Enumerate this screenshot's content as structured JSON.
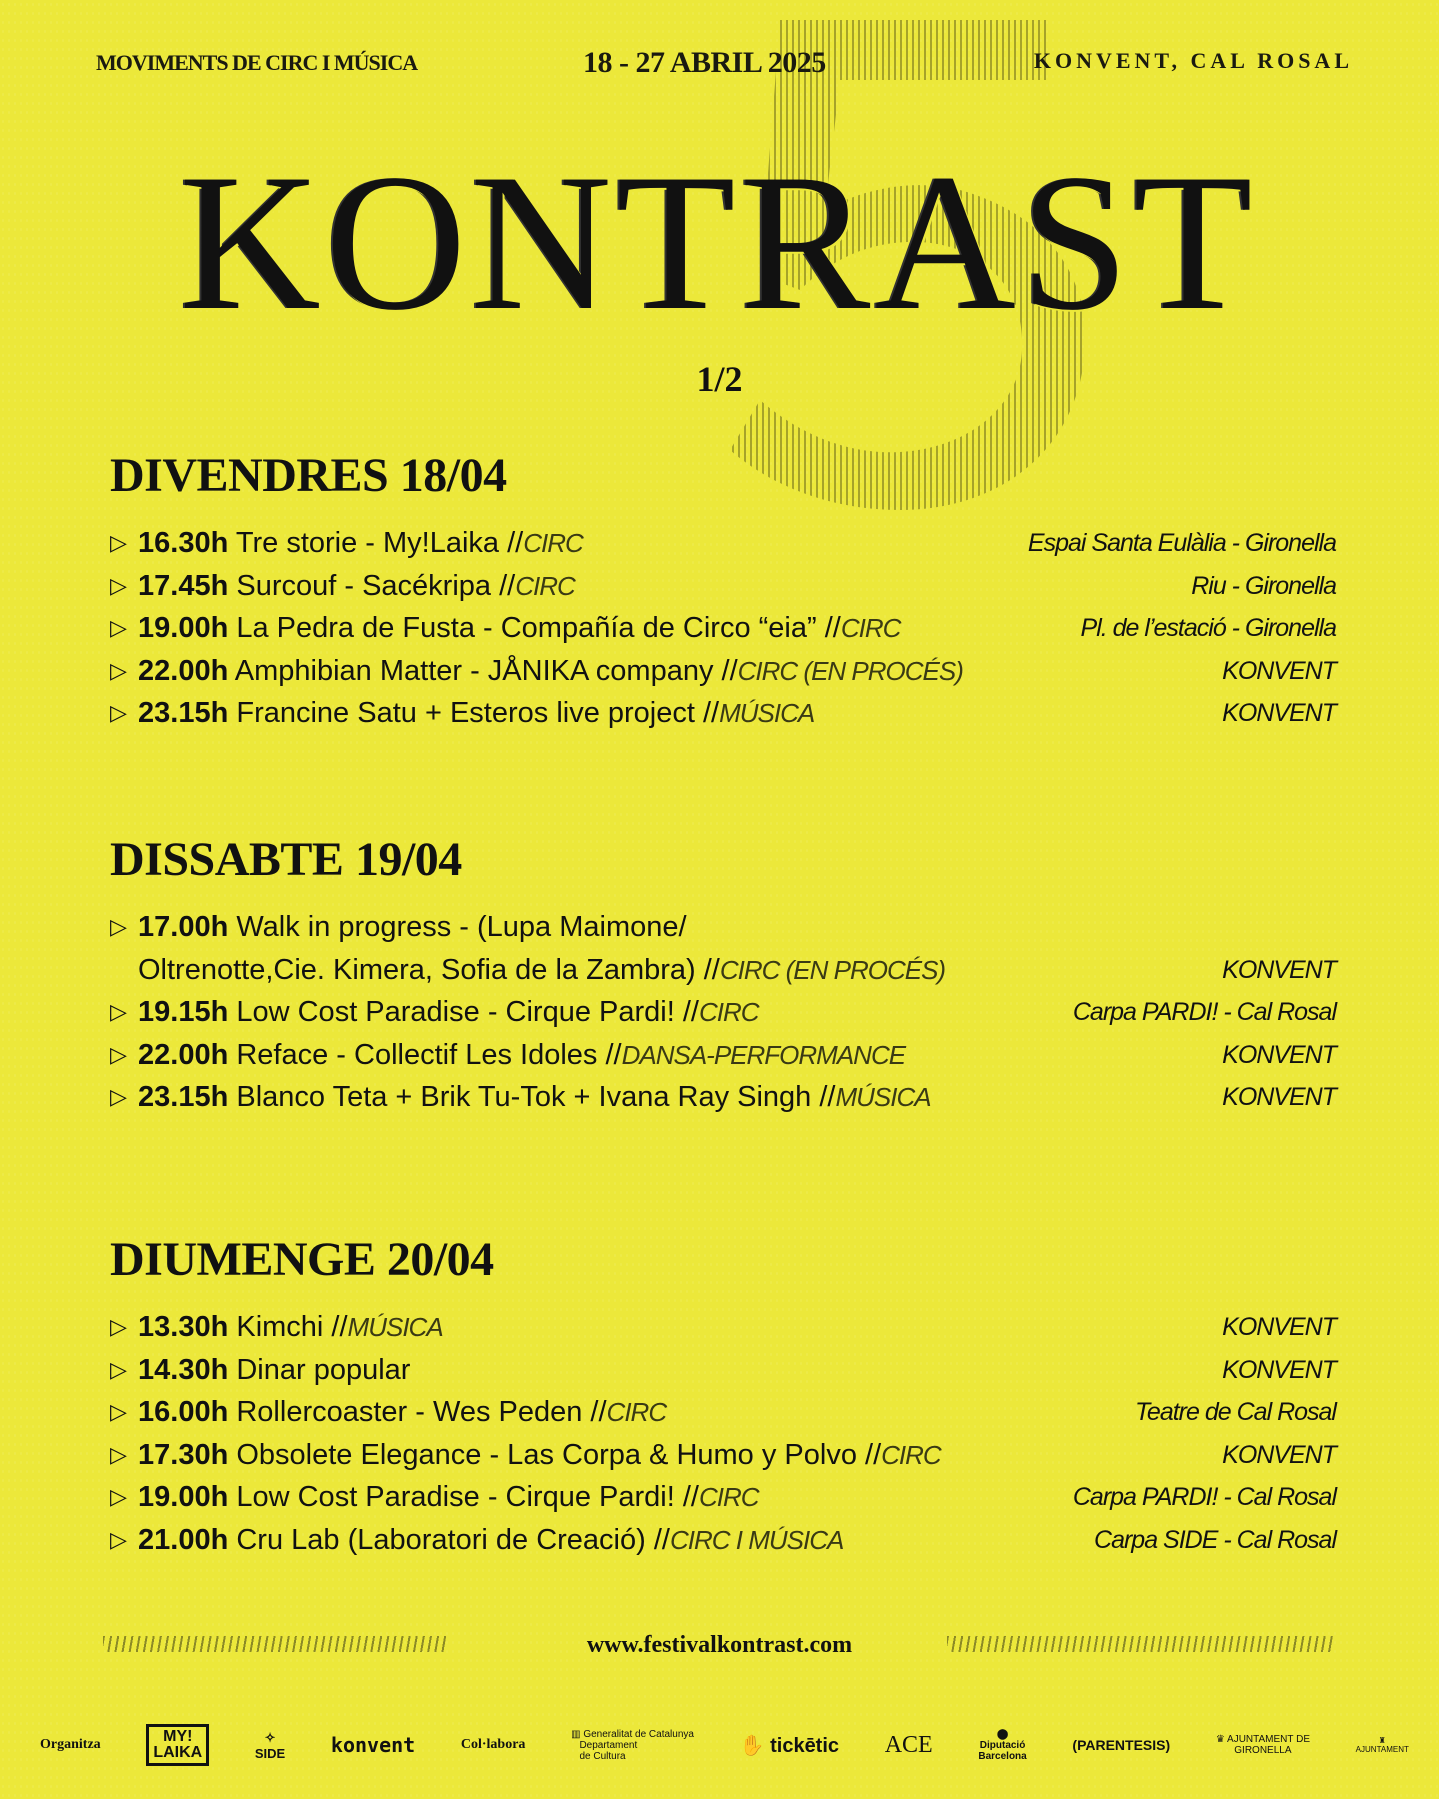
{
  "header": {
    "tagline": "MOVIMENTS DE CIRC I MÚSICA",
    "dates": "18 - 27 ABRIL 2025",
    "location": "KONVENT, CAL ROSAL"
  },
  "title": "KONTRAST",
  "edition_numeral": "5",
  "part": "1/2",
  "colors": {
    "background": "#ece83a",
    "text": "#111111",
    "tag": "#3a3a14"
  },
  "bullet_icon": "triangle-right-outline",
  "days": [
    {
      "heading": "DIVENDRES 18/04",
      "events": [
        {
          "time": "16.30h",
          "title": "Tre storie - My!Laika",
          "tag": "CIRC",
          "venue": "Espai Santa Eulàlia - Gironella"
        },
        {
          "time": "17.45h",
          "title": "Surcouf - Sacékripa",
          "tag": "CIRC",
          "venue": "Riu - Gironella"
        },
        {
          "time": "19.00h",
          "title": "La Pedra de Fusta - Compañía de Circo “eia”",
          "tag": "CIRC",
          "venue": "Pl. de l’estació - Gironella"
        },
        {
          "time": "22.00h",
          "title": "Amphibian Matter - JÅNIKA company",
          "tag": "CIRC (EN PROCÉS)",
          "venue": "KONVENT"
        },
        {
          "time": "23.15h",
          "title": "Francine Satu + Esteros live project",
          "tag": "MÚSICA",
          "venue": "KONVENT"
        }
      ]
    },
    {
      "heading": "DISSABTE 19/04",
      "events": [
        {
          "time": "17.00h",
          "title": "Walk in progress - (Lupa Maimone/\nOltrenotte,Cie. Kimera, Sofia de la Zambra)",
          "tag": "CIRC (EN PROCÉS)",
          "venue": "KONVENT"
        },
        {
          "time": "19.15h",
          "title": "Low Cost Paradise - Cirque Pardi!",
          "tag": "CIRC",
          "venue": "Carpa PARDI! - Cal Rosal"
        },
        {
          "time": "22.00h",
          "title": "Reface - Collectif Les Idoles",
          "tag": "DANSA-PERFORMANCE",
          "venue": "KONVENT"
        },
        {
          "time": "23.15h",
          "title": "Blanco Teta + Brik Tu-Tok + Ivana Ray Singh",
          "tag": "MÚSICA",
          "venue": "KONVENT"
        }
      ]
    },
    {
      "heading": "DIUMENGE 20/04",
      "events": [
        {
          "time": "13.30h",
          "title": "Kimchi",
          "tag": "MÚSICA",
          "venue": "KONVENT"
        },
        {
          "time": "14.30h",
          "title": "Dinar popular",
          "tag": "",
          "venue": "KONVENT"
        },
        {
          "time": "16.00h",
          "title": "Rollercoaster - Wes Peden",
          "tag": "CIRC",
          "venue": "Teatre de Cal Rosal"
        },
        {
          "time": "17.30h",
          "title": "Obsolete Elegance - Las Corpa & Humo y Polvo",
          "tag": "CIRC",
          "venue": "KONVENT"
        },
        {
          "time": "19.00h",
          "title": "Low Cost Paradise - Cirque Pardi!",
          "tag": "CIRC",
          "venue": "Carpa PARDI! -  Cal Rosal"
        },
        {
          "time": "21.00h",
          "title": "Cru Lab (Laboratori de Creació)",
          "tag": "CIRC I MÚSICA",
          "venue": "Carpa SIDE - Cal Rosal"
        }
      ]
    }
  ],
  "footer": {
    "url": "www.festivalkontrast.com",
    "organitza_label": "Organitza",
    "collabora_label": "Col·labora",
    "logos": [
      "MY! LAIKA kunst-cirque",
      "SIDE",
      "konvent",
      "Generalitat de Catalunya Departament de Cultura",
      "tickētic",
      "ACE Cal Rosal",
      "Diputació Barcelona",
      "(PARENTESIS)",
      "Ajuntament de Gironella",
      "Ajuntament"
    ]
  }
}
